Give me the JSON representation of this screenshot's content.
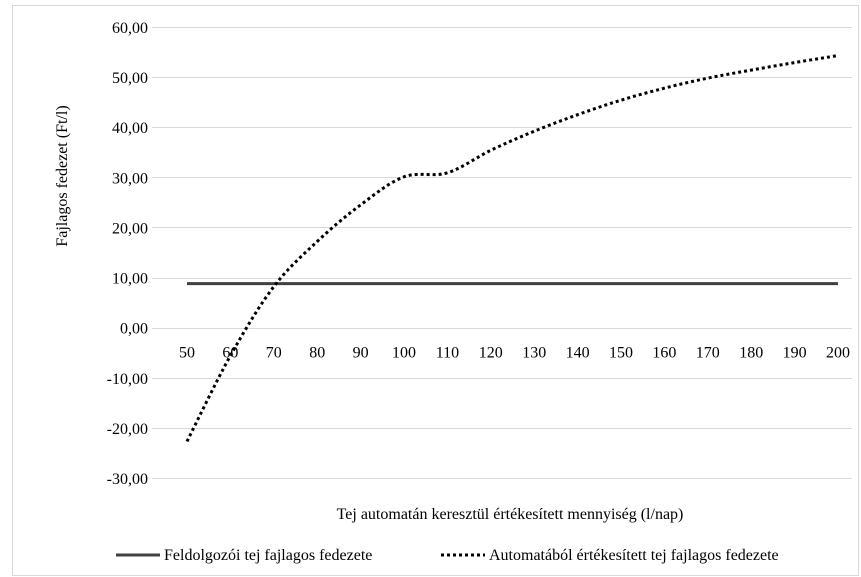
{
  "chart_data": {
    "type": "line",
    "title": "",
    "xlabel": "Tej automatán keresztül értékesített mennyiség (l/nap)",
    "ylabel": "Fajlagos fedezet (Ft/l)",
    "ylim": [
      -30,
      60
    ],
    "y_ticks": [
      "60,00",
      "50,00",
      "40,00",
      "30,00",
      "20,00",
      "10,00",
      "0,00",
      "-10,00",
      "-20,00",
      "-30,00"
    ],
    "y_tick_values": [
      60,
      50,
      40,
      30,
      20,
      10,
      0,
      -10,
      -20,
      -30
    ],
    "categories": [
      "50",
      "60",
      "70",
      "80",
      "90",
      "100",
      "110",
      "120",
      "130",
      "140",
      "150",
      "160",
      "170",
      "180",
      "190",
      "200"
    ],
    "x": [
      50,
      60,
      70,
      80,
      90,
      100,
      110,
      120,
      130,
      140,
      150,
      160,
      170,
      180,
      190,
      200
    ],
    "grid": true,
    "legend_position": "bottom",
    "series": [
      {
        "name": "Feldolgozói tej fajlagos fedezete",
        "style": "solid",
        "color": "#404040",
        "values": [
          8.8,
          8.8,
          8.8,
          8.8,
          8.8,
          8.8,
          8.8,
          8.8,
          8.8,
          8.8,
          8.8,
          8.8,
          8.8,
          8.8,
          8.8,
          8.8
        ]
      },
      {
        "name": "Automatából értékesített tej fajlagos fedezete",
        "style": "dotted",
        "color": "#000000",
        "values": [
          -22.7,
          -5.6,
          8.2,
          17.2,
          24.5,
          30.1,
          30.9,
          35.4,
          39.2,
          42.5,
          45.4,
          47.8,
          49.8,
          51.4,
          52.9,
          54.3
        ]
      }
    ]
  }
}
